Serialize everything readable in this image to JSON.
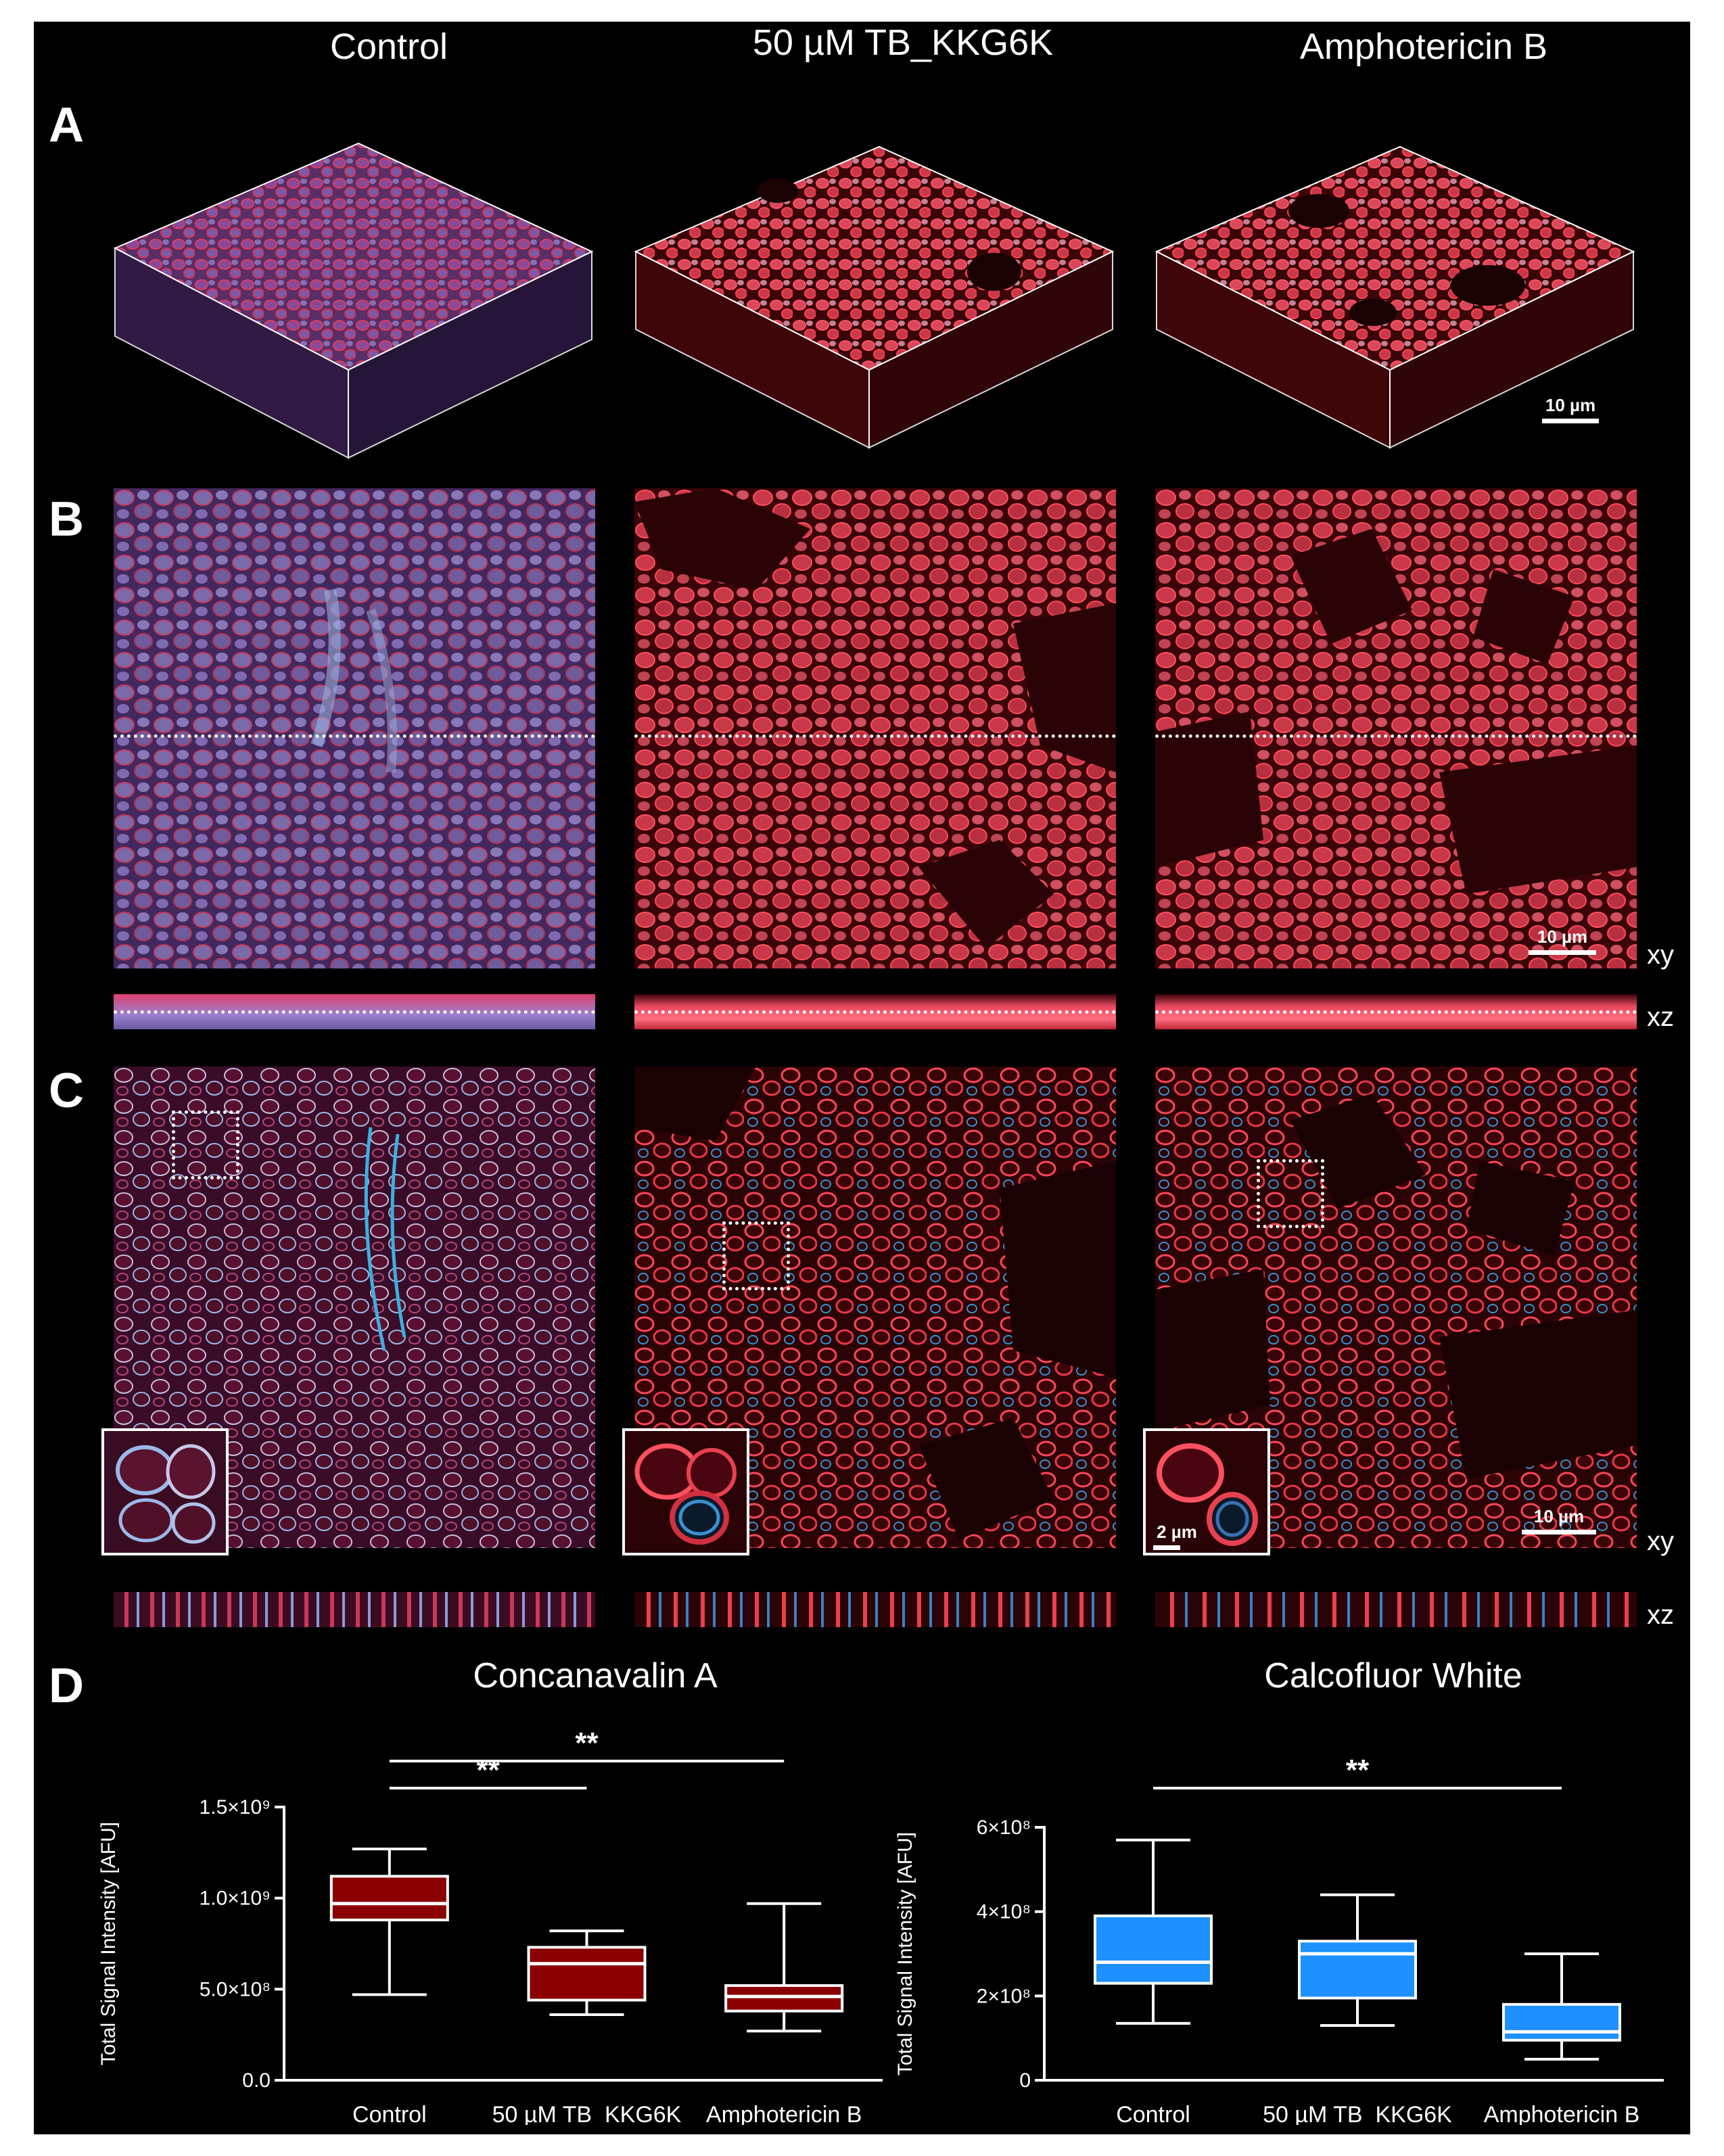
{
  "columns": [
    "Control",
    "50 µM TB_KKG6K",
    "Amphotericin B"
  ],
  "panels": {
    "A": "A",
    "B": "B",
    "C": "C",
    "D": "D"
  },
  "planes": {
    "xy": "xy",
    "xz": "xz"
  },
  "scale_bars": {
    "main": "10 µm",
    "inset": "2 µm"
  },
  "colors": {
    "background": "#000000",
    "concanavalin": "#8b0000",
    "calcofluor": "#1e90ff",
    "cell_red": "#d8283a",
    "cell_blue": "#9aa6e8"
  },
  "chart_data": [
    {
      "type": "box",
      "title": "Concanavalin A",
      "ylabel": "Total Signal Intensity [AFU]",
      "categories": [
        "Control",
        "50 µM TB_KKG6K",
        "Amphotericin B"
      ],
      "ylim": [
        0,
        1500000000
      ],
      "yticks": [
        0,
        500000000,
        1000000000,
        1500000000
      ],
      "ytick_labels": [
        "0.0",
        "5.0×10⁸",
        "1.0×10⁹",
        "1.5×10⁹"
      ],
      "box_color": "#8b0000",
      "series": [
        {
          "category": "Control",
          "min": 470000000,
          "q1": 880000000,
          "median": 970000000,
          "q3": 1120000000,
          "max": 1270000000
        },
        {
          "category": "50 µM TB_KKG6K",
          "min": 360000000,
          "q1": 440000000,
          "median": 640000000,
          "q3": 730000000,
          "max": 820000000
        },
        {
          "category": "Amphotericin B",
          "min": 270000000,
          "q1": 380000000,
          "median": 460000000,
          "q3": 520000000,
          "max": 970000000
        }
      ],
      "significance": [
        {
          "from": "Control",
          "to": "Amphotericin B",
          "label": "**"
        },
        {
          "from": "Control",
          "to": "50 µM TB_KKG6K",
          "label": "**"
        }
      ]
    },
    {
      "type": "box",
      "title": "Calcofluor White",
      "ylabel": "Total Signal Intensity [AFU]",
      "categories": [
        "Control",
        "50 µM TB_KKG6K",
        "Amphotericin B"
      ],
      "ylim": [
        0,
        600000000
      ],
      "yticks": [
        0,
        200000000,
        400000000,
        600000000
      ],
      "ytick_labels": [
        "0",
        "2×10⁸",
        "4×10⁸",
        "6×10⁸"
      ],
      "box_color": "#1e90ff",
      "series": [
        {
          "category": "Control",
          "min": 135000000,
          "q1": 230000000,
          "median": 280000000,
          "q3": 390000000,
          "max": 570000000
        },
        {
          "category": "50 µM TB_KKG6K",
          "min": 130000000,
          "q1": 195000000,
          "median": 300000000,
          "q3": 330000000,
          "max": 440000000
        },
        {
          "category": "Amphotericin B",
          "min": 50000000,
          "q1": 95000000,
          "median": 115000000,
          "q3": 180000000,
          "max": 300000000
        }
      ],
      "significance": [
        {
          "from": "Control",
          "to": "Amphotericin B",
          "label": "**"
        }
      ]
    }
  ]
}
